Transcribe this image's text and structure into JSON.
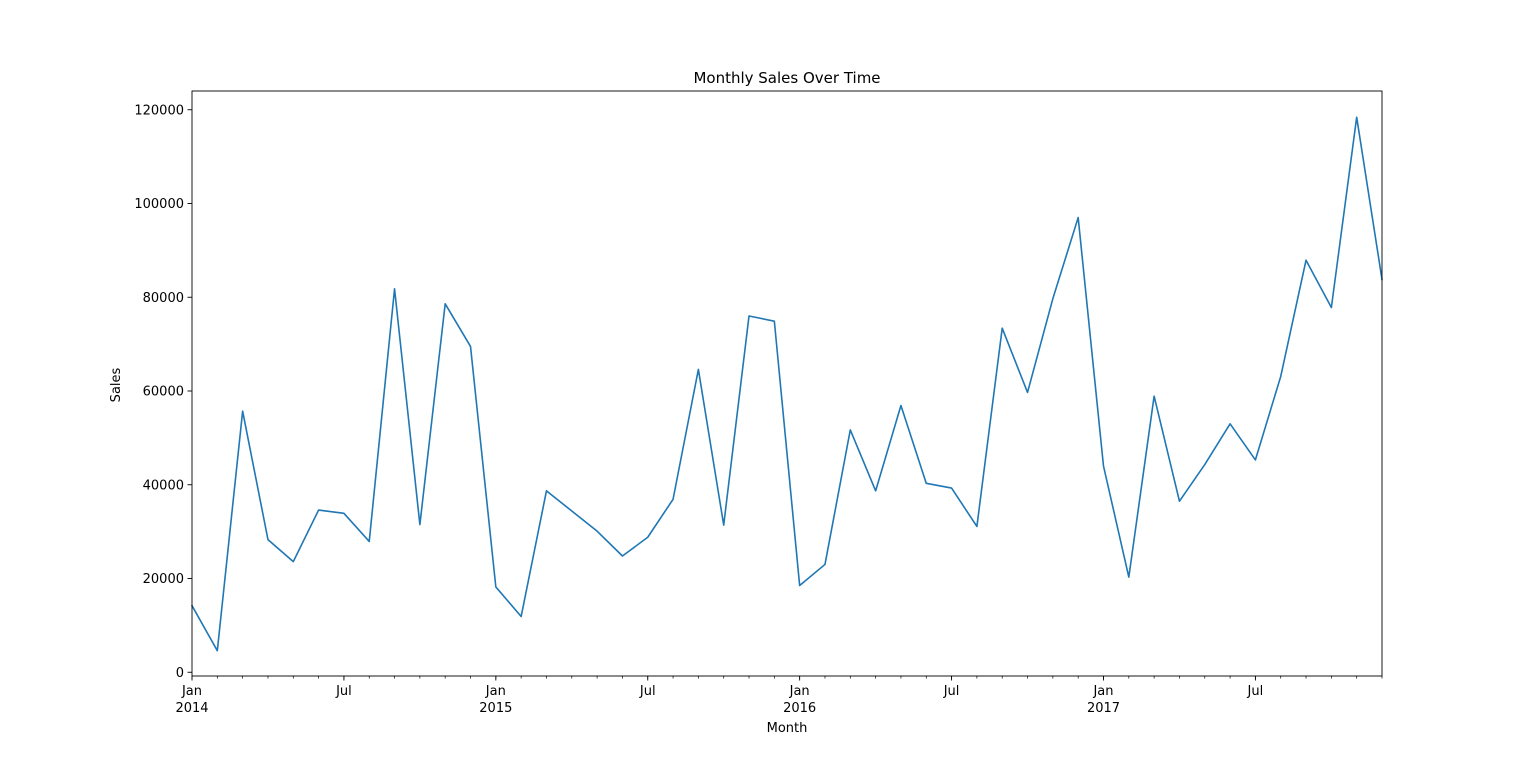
{
  "chart_data": {
    "type": "line",
    "title": "Monthly Sales Over Time",
    "xlabel": "Month",
    "ylabel": "Sales",
    "ylim": [
      -800,
      124000
    ],
    "xlim": [
      "2014-01",
      "2017-12"
    ],
    "grid": false,
    "legend": "none",
    "line_color": "#1f77b4",
    "y_ticks": [
      {
        "value": 0,
        "label": "0"
      },
      {
        "value": 20000,
        "label": "20000"
      },
      {
        "value": 40000,
        "label": "40000"
      },
      {
        "value": 60000,
        "label": "60000"
      },
      {
        "value": 80000,
        "label": "80000"
      },
      {
        "value": 100000,
        "label": "100000"
      },
      {
        "value": 120000,
        "label": "120000"
      }
    ],
    "x_major_ticks": [
      {
        "month": "2014-01",
        "label": "Jan",
        "year": "2014"
      },
      {
        "month": "2014-07",
        "label": "Jul",
        "year": ""
      },
      {
        "month": "2015-01",
        "label": "Jan",
        "year": "2015"
      },
      {
        "month": "2015-07",
        "label": "Jul",
        "year": ""
      },
      {
        "month": "2016-01",
        "label": "Jan",
        "year": "2016"
      },
      {
        "month": "2016-07",
        "label": "Jul",
        "year": ""
      },
      {
        "month": "2017-01",
        "label": "Jan",
        "year": "2017"
      },
      {
        "month": "2017-07",
        "label": "Jul",
        "year": ""
      }
    ],
    "series": [
      {
        "x": [
          "2014-01",
          "2014-02",
          "2014-03",
          "2014-04",
          "2014-05",
          "2014-06",
          "2014-07",
          "2014-08",
          "2014-09",
          "2014-10",
          "2014-11",
          "2014-12",
          "2015-01",
          "2015-02",
          "2015-03",
          "2015-04",
          "2015-05",
          "2015-06",
          "2015-07",
          "2015-08",
          "2015-09",
          "2015-10",
          "2015-11",
          "2015-12",
          "2016-01",
          "2016-02",
          "2016-03",
          "2016-04",
          "2016-05",
          "2016-06",
          "2016-07",
          "2016-08",
          "2016-09",
          "2016-10",
          "2016-11",
          "2016-12",
          "2017-01",
          "2017-02",
          "2017-03",
          "2017-04",
          "2017-05",
          "2017-06",
          "2017-07",
          "2017-08",
          "2017-09",
          "2017-10",
          "2017-11",
          "2017-12"
        ],
        "values": [
          14200,
          4600,
          55700,
          28300,
          23600,
          34600,
          33900,
          27900,
          81800,
          31500,
          78600,
          69500,
          18200,
          11900,
          38700,
          34400,
          30100,
          24800,
          28800,
          36900,
          64600,
          31400,
          76000,
          74900,
          18500,
          23000,
          51700,
          38700,
          56900,
          40300,
          39300,
          31100,
          73400,
          59700,
          79700,
          97000,
          44000,
          20300,
          58900,
          36500,
          44300,
          53000,
          45300,
          63100,
          87900,
          77800,
          118400,
          83800
        ]
      }
    ]
  }
}
